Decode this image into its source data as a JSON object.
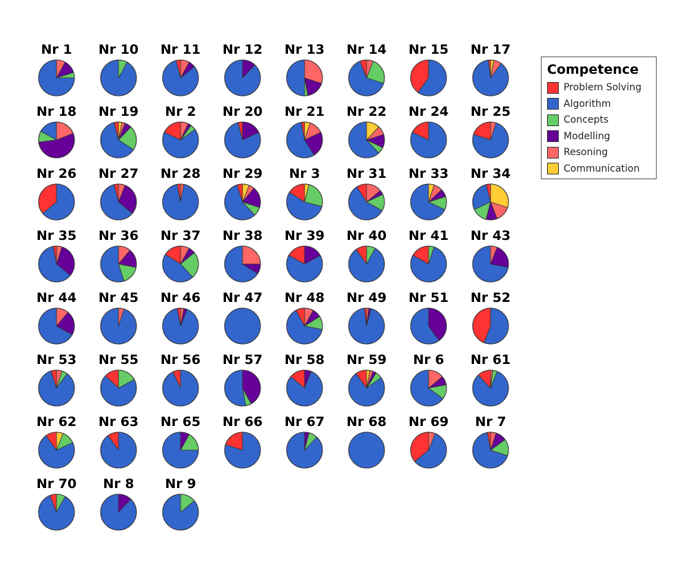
{
  "chart_data": {
    "type": "pie",
    "legend": {
      "title": "Competence",
      "position": "right",
      "entries": [
        {
          "name": "Problem Solving",
          "color": "#ff3333"
        },
        {
          "name": "Algorithm",
          "color": "#3366cc"
        },
        {
          "name": "Concepts",
          "color": "#66cc66"
        },
        {
          "name": "Modelling",
          "color": "#660099"
        },
        {
          "name": "Resoning",
          "color": "#ff6666"
        },
        {
          "name": "Communication",
          "color": "#ffcc33"
        }
      ]
    },
    "categories": [
      "Problem Solving",
      "Algorithm",
      "Concepts",
      "Modelling",
      "Resoning",
      "Communication"
    ],
    "pies": [
      {
        "label": "Nr 1",
        "values": [
          0,
          75,
          5,
          12,
          8,
          0
        ]
      },
      {
        "label": "Nr 10",
        "values": [
          0,
          92,
          8,
          0,
          0,
          0
        ]
      },
      {
        "label": "Nr 11",
        "values": [
          4,
          82,
          0,
          6,
          8,
          0
        ]
      },
      {
        "label": "Nr 12",
        "values": [
          0,
          88,
          0,
          12,
          0,
          0
        ]
      },
      {
        "label": "Nr 13",
        "values": [
          0,
          50,
          3,
          17,
          30,
          0
        ]
      },
      {
        "label": "Nr 14",
        "values": [
          6,
          64,
          24,
          0,
          6,
          0
        ]
      },
      {
        "label": "Nr 15",
        "values": [
          40,
          60,
          0,
          0,
          0,
          0
        ]
      },
      {
        "label": "Nr 17",
        "values": [
          2,
          88,
          0,
          0,
          7,
          3
        ]
      },
      {
        "label": "Nr 18",
        "values": [
          0,
          17,
          10,
          54,
          19,
          0
        ]
      },
      {
        "label": "Nr 19",
        "values": [
          4,
          62,
          22,
          6,
          3,
          3
        ]
      },
      {
        "label": "Nr 2",
        "values": [
          18,
          67,
          5,
          3,
          7,
          0
        ]
      },
      {
        "label": "Nr 20",
        "values": [
          4,
          78,
          0,
          18,
          0,
          0
        ]
      },
      {
        "label": "Nr 21",
        "values": [
          3,
          56,
          0,
          23,
          13,
          5
        ]
      },
      {
        "label": "Nr 22",
        "values": [
          0,
          62,
          6,
          12,
          8,
          12
        ]
      },
      {
        "label": "Nr 24",
        "values": [
          18,
          82,
          0,
          0,
          0,
          0
        ]
      },
      {
        "label": "Nr 25",
        "values": [
          20,
          75,
          0,
          0,
          5,
          0
        ]
      },
      {
        "label": "Nr 26",
        "values": [
          36,
          64,
          0,
          0,
          0,
          0
        ]
      },
      {
        "label": "Nr 27",
        "values": [
          4,
          60,
          0,
          30,
          6,
          0
        ]
      },
      {
        "label": "Nr 28",
        "values": [
          3,
          94,
          0,
          0,
          3,
          0
        ]
      },
      {
        "label": "Nr 29",
        "values": [
          5,
          57,
          8,
          19,
          5,
          6
        ]
      },
      {
        "label": "Nr 3",
        "values": [
          16,
          55,
          25,
          0,
          0,
          4
        ]
      },
      {
        "label": "Nr 31",
        "values": [
          9,
          58,
          15,
          4,
          14,
          0
        ]
      },
      {
        "label": "Nr 33",
        "values": [
          0,
          68,
          12,
          7,
          8,
          5
        ]
      },
      {
        "label": "Nr 34",
        "values": [
          4,
          28,
          14,
          10,
          14,
          30
        ]
      },
      {
        "label": "Nr 35",
        "values": [
          3,
          61,
          0,
          31,
          5,
          0
        ]
      },
      {
        "label": "Nr 36",
        "values": [
          0,
          55,
          17,
          17,
          11,
          0
        ]
      },
      {
        "label": "Nr 37",
        "values": [
          16,
          46,
          24,
          6,
          8,
          0
        ]
      },
      {
        "label": "Nr 38",
        "values": [
          0,
          66,
          0,
          9,
          25,
          0
        ]
      },
      {
        "label": "Nr 39",
        "values": [
          17,
          66,
          0,
          17,
          0,
          0
        ]
      },
      {
        "label": "Nr 40",
        "values": [
          10,
          82,
          8,
          0,
          0,
          0
        ]
      },
      {
        "label": "Nr 41",
        "values": [
          17,
          78,
          5,
          0,
          0,
          0
        ]
      },
      {
        "label": "Nr 43",
        "values": [
          0,
          72,
          0,
          22,
          6,
          0
        ]
      },
      {
        "label": "Nr 44",
        "values": [
          0,
          67,
          0,
          22,
          11,
          0
        ]
      },
      {
        "label": "Nr 45",
        "values": [
          0,
          95,
          0,
          0,
          5,
          0
        ]
      },
      {
        "label": "Nr 46",
        "values": [
          3,
          91,
          0,
          3,
          3,
          0
        ]
      },
      {
        "label": "Nr 47",
        "values": [
          0,
          100,
          0,
          0,
          0,
          0
        ]
      },
      {
        "label": "Nr 48",
        "values": [
          8,
          64,
          12,
          8,
          8,
          0
        ]
      },
      {
        "label": "Nr 49",
        "values": [
          2,
          94,
          0,
          2,
          2,
          0
        ]
      },
      {
        "label": "Nr 51",
        "values": [
          0,
          60,
          0,
          40,
          0,
          0
        ]
      },
      {
        "label": "Nr 52",
        "values": [
          44,
          56,
          0,
          0,
          0,
          0
        ]
      },
      {
        "label": "Nr 53",
        "values": [
          5,
          85,
          5,
          0,
          5,
          0
        ]
      },
      {
        "label": "Nr 55",
        "values": [
          13,
          70,
          17,
          0,
          0,
          0
        ]
      },
      {
        "label": "Nr 56",
        "values": [
          7,
          93,
          0,
          0,
          0,
          0
        ]
      },
      {
        "label": "Nr 57",
        "values": [
          0,
          53,
          5,
          42,
          0,
          0
        ]
      },
      {
        "label": "Nr 58",
        "values": [
          14,
          80,
          0,
          6,
          0,
          0
        ]
      },
      {
        "label": "Nr 59",
        "values": [
          10,
          75,
          6,
          3,
          3,
          3
        ]
      },
      {
        "label": "Nr 6",
        "values": [
          0,
          65,
          13,
          8,
          14,
          0
        ]
      },
      {
        "label": "Nr 61",
        "values": [
          12,
          82,
          4,
          0,
          2,
          0
        ]
      },
      {
        "label": "Nr 62",
        "values": [
          10,
          72,
          12,
          0,
          0,
          6
        ]
      },
      {
        "label": "Nr 63",
        "values": [
          10,
          90,
          0,
          0,
          0,
          0
        ]
      },
      {
        "label": "Nr 65",
        "values": [
          0,
          75,
          17,
          8,
          0,
          0
        ]
      },
      {
        "label": "Nr 66",
        "values": [
          20,
          80,
          0,
          0,
          0,
          0
        ]
      },
      {
        "label": "Nr 67",
        "values": [
          0,
          88,
          8,
          4,
          0,
          0
        ]
      },
      {
        "label": "Nr 68",
        "values": [
          0,
          100,
          0,
          0,
          0,
          0
        ]
      },
      {
        "label": "Nr 69",
        "values": [
          36,
          58,
          0,
          0,
          6,
          0
        ]
      },
      {
        "label": "Nr 7",
        "values": [
          3,
          67,
          15,
          10,
          5,
          0
        ]
      },
      {
        "label": "Nr 70",
        "values": [
          6,
          86,
          8,
          0,
          0,
          0
        ]
      },
      {
        "label": "Nr 8",
        "values": [
          0,
          88,
          0,
          12,
          0,
          0
        ]
      },
      {
        "label": "Nr 9",
        "values": [
          0,
          86,
          14,
          0,
          0,
          0
        ]
      }
    ]
  }
}
